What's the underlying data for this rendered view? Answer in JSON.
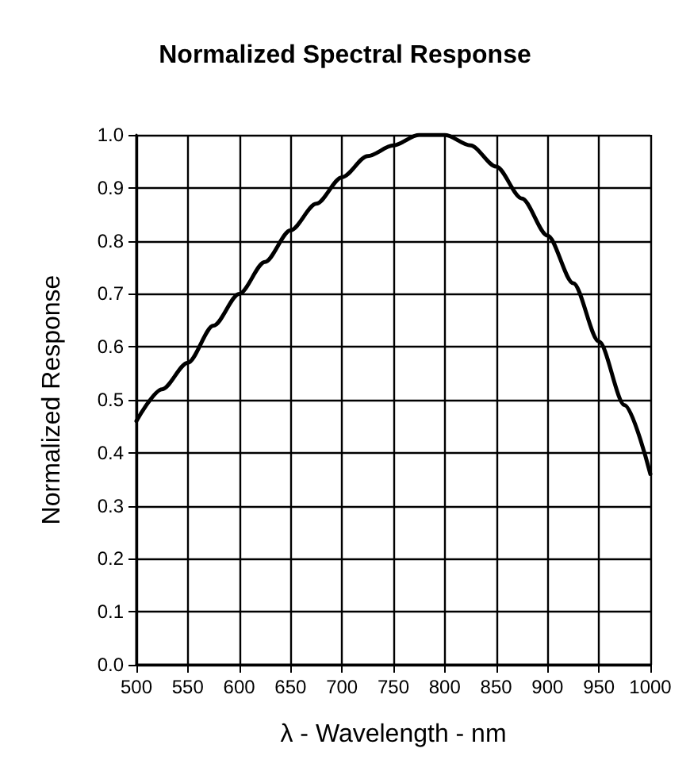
{
  "chart_data": {
    "type": "line",
    "title": "Normalized Spectral Response",
    "xlabel": "λ - Wavelength - nm",
    "ylabel": "Normalized Response",
    "x": [
      500,
      525,
      550,
      575,
      600,
      625,
      650,
      675,
      700,
      725,
      750,
      775,
      800,
      825,
      850,
      875,
      900,
      925,
      950,
      975,
      1000
    ],
    "series": [
      {
        "color": "#000000",
        "values": [
          0.46,
          0.52,
          0.57,
          0.64,
          0.7,
          0.76,
          0.82,
          0.87,
          0.92,
          0.96,
          0.98,
          1.0,
          1.0,
          0.98,
          0.94,
          0.88,
          0.81,
          0.72,
          0.61,
          0.49,
          0.36
        ]
      }
    ],
    "xlim": [
      500,
      1000
    ],
    "xticks": [
      500,
      550,
      600,
      650,
      700,
      750,
      800,
      850,
      900,
      950,
      1000
    ],
    "ylim": [
      0,
      1
    ],
    "yticks": [
      {
        "value": 0,
        "label": "0.0"
      },
      {
        "value": 0.1,
        "label": "0.1"
      },
      {
        "value": 0.2,
        "label": "0.2"
      },
      {
        "value": 0.3,
        "label": "0.3"
      },
      {
        "value": 0.4,
        "label": "0.4"
      },
      {
        "value": 0.5,
        "label": "0.5"
      },
      {
        "value": 0.6,
        "label": "0.6"
      },
      {
        "value": 0.7,
        "label": "0.7"
      },
      {
        "value": 0.8,
        "label": "0.8"
      },
      {
        "value": 0.9,
        "label": "0.9"
      },
      {
        "value": 1,
        "label": "1.0"
      }
    ],
    "grid": true,
    "marker": "none",
    "line_style": "solid"
  }
}
